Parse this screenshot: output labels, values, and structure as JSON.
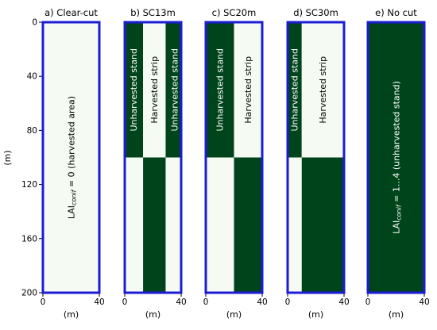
{
  "colors": {
    "harvested": "#f5fbf3",
    "unharvested": "#00441b",
    "frame": "#1c1cd6",
    "text_on_dark": "#ffffff",
    "text_on_light": "#000000"
  },
  "y_axis_label": "(m)",
  "chart_data": [
    {
      "type": "heatmap",
      "title": "a) Clear-cut",
      "xlabel": "(m)",
      "ylabel": "(m)",
      "xlim": [
        0,
        40
      ],
      "ylim": [
        0,
        200
      ],
      "y_inverted": true,
      "x_ticks": [
        "0",
        "40"
      ],
      "y_ticks": [
        "0",
        "40",
        "80",
        "120",
        "160",
        "200"
      ],
      "cells": [
        {
          "x0": 0,
          "x1": 40,
          "y0": 0,
          "y1": 200,
          "cover": "harvested"
        }
      ],
      "annotations": [
        {
          "kind": "lai",
          "prefix": "LAI",
          "sub": "conif",
          "suffix": " = 0 (harvested area)",
          "x": 20,
          "y": 100,
          "on": "harvested"
        }
      ]
    },
    {
      "type": "heatmap",
      "title": "b) SC13m",
      "xlabel": "(m)",
      "xlim": [
        0,
        40
      ],
      "ylim": [
        0,
        200
      ],
      "y_inverted": true,
      "x_ticks": [
        "0",
        "40"
      ],
      "cells": [
        {
          "x0": 0,
          "x1": 13,
          "y0": 0,
          "y1": 100,
          "cover": "unharvested"
        },
        {
          "x0": 13,
          "x1": 29,
          "y0": 0,
          "y1": 100,
          "cover": "harvested"
        },
        {
          "x0": 29,
          "x1": 42,
          "y0": 0,
          "y1": 100,
          "cover": "unharvested"
        },
        {
          "x0": 0,
          "x1": 13,
          "y0": 100,
          "y1": 200,
          "cover": "harvested"
        },
        {
          "x0": 13,
          "x1": 29,
          "y0": 100,
          "y1": 200,
          "cover": "unharvested"
        },
        {
          "x0": 29,
          "x1": 42,
          "y0": 100,
          "y1": 200,
          "cover": "harvested"
        }
      ],
      "annotations": [
        {
          "kind": "text",
          "text": "Unharvested stand",
          "x": 6.5,
          "y": 50,
          "on": "unharvested"
        },
        {
          "kind": "text",
          "text": "Harvested strip",
          "x": 21,
          "y": 50,
          "on": "harvested"
        },
        {
          "kind": "text",
          "text": "Unharvested stand",
          "x": 35.5,
          "y": 50,
          "on": "unharvested"
        }
      ]
    },
    {
      "type": "heatmap",
      "title": "c) SC20m",
      "xlabel": "(m)",
      "xlim": [
        0,
        40
      ],
      "ylim": [
        0,
        200
      ],
      "y_inverted": true,
      "x_ticks": [
        "0",
        "40"
      ],
      "cells": [
        {
          "x0": 0,
          "x1": 20,
          "y0": 0,
          "y1": 100,
          "cover": "unharvested"
        },
        {
          "x0": 20,
          "x1": 40,
          "y0": 0,
          "y1": 100,
          "cover": "harvested"
        },
        {
          "x0": 0,
          "x1": 20,
          "y0": 100,
          "y1": 200,
          "cover": "harvested"
        },
        {
          "x0": 20,
          "x1": 40,
          "y0": 100,
          "y1": 200,
          "cover": "unharvested"
        }
      ],
      "annotations": [
        {
          "kind": "text",
          "text": "Unharvested stand",
          "x": 10,
          "y": 50,
          "on": "unharvested"
        },
        {
          "kind": "text",
          "text": "Harvested strip",
          "x": 30,
          "y": 50,
          "on": "harvested"
        }
      ]
    },
    {
      "type": "heatmap",
      "title": "d) SC30m",
      "xlabel": "(m)",
      "xlim": [
        0,
        40
      ],
      "ylim": [
        0,
        200
      ],
      "y_inverted": true,
      "x_ticks": [
        "0",
        "40"
      ],
      "cells": [
        {
          "x0": 0,
          "x1": 10,
          "y0": 0,
          "y1": 100,
          "cover": "unharvested"
        },
        {
          "x0": 10,
          "x1": 40,
          "y0": 0,
          "y1": 100,
          "cover": "harvested"
        },
        {
          "x0": 0,
          "x1": 10,
          "y0": 100,
          "y1": 200,
          "cover": "harvested"
        },
        {
          "x0": 10,
          "x1": 40,
          "y0": 100,
          "y1": 200,
          "cover": "unharvested"
        }
      ],
      "annotations": [
        {
          "kind": "text",
          "text": "Unharvested stand",
          "x": 5,
          "y": 50,
          "on": "unharvested"
        },
        {
          "kind": "text",
          "text": "Harvested strip",
          "x": 25,
          "y": 50,
          "on": "harvested"
        }
      ]
    },
    {
      "type": "heatmap",
      "title": "e) No cut",
      "xlabel": "(m)",
      "xlim": [
        0,
        40
      ],
      "ylim": [
        0,
        200
      ],
      "y_inverted": true,
      "x_ticks": [
        "0",
        "40"
      ],
      "cells": [
        {
          "x0": 0,
          "x1": 40,
          "y0": 0,
          "y1": 200,
          "cover": "unharvested"
        }
      ],
      "annotations": [
        {
          "kind": "lai",
          "prefix": "LAI",
          "sub": "conif",
          "suffix": " = 1...4 (unharvested stand)",
          "x": 20,
          "y": 100,
          "on": "unharvested"
        }
      ]
    }
  ]
}
